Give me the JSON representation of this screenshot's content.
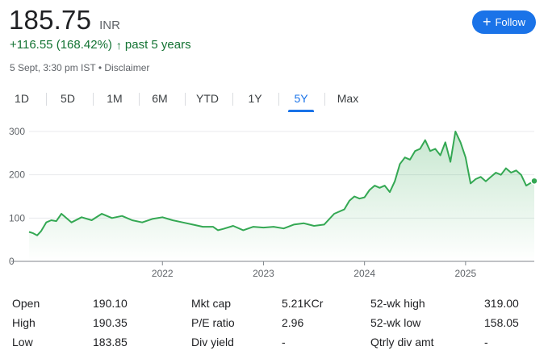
{
  "quote": {
    "price": "185.75",
    "currency": "INR",
    "change": "+116.55 (168.42%)",
    "change_arrow": "↑",
    "change_period": "past 5 years",
    "timestamp": "5 Sept, 3:30 pm IST • Disclaimer",
    "follow_label": "Follow"
  },
  "tabs": [
    "1D",
    "5D",
    "1M",
    "6M",
    "YTD",
    "1Y",
    "5Y",
    "Max"
  ],
  "active_tab": "5Y",
  "colors": {
    "accent": "#1a73e8",
    "positive": "#137333",
    "line": "#34a853"
  },
  "chart_data": {
    "type": "area",
    "ylim": [
      0,
      320
    ],
    "yticks": [
      "300",
      "200",
      "100",
      "0"
    ],
    "xticks": [
      "2022",
      "2023",
      "2024",
      "2025"
    ],
    "series": [
      {
        "x": [
          2020.68,
          2020.72,
          2020.76,
          2020.8,
          2020.85,
          2020.9,
          2020.95,
          2021.0,
          2021.1,
          2021.2,
          2021.3,
          2021.4,
          2021.5,
          2021.6,
          2021.7,
          2021.8,
          2021.9,
          2022.0,
          2022.1,
          2022.2,
          2022.3,
          2022.4,
          2022.5,
          2022.55,
          2022.6,
          2022.7,
          2022.8,
          2022.9,
          2023.0,
          2023.1,
          2023.2,
          2023.3,
          2023.4,
          2023.5,
          2023.6,
          2023.7,
          2023.8,
          2023.85,
          2023.9,
          2023.95,
          2024.0,
          2024.05,
          2024.1,
          2024.15,
          2024.2,
          2024.25,
          2024.3,
          2024.35,
          2024.4,
          2024.45,
          2024.5,
          2024.55,
          2024.6,
          2024.65,
          2024.7,
          2024.75,
          2024.8,
          2024.85,
          2024.9,
          2024.95,
          2025.0,
          2025.05,
          2025.1,
          2025.15,
          2025.2,
          2025.25,
          2025.3,
          2025.35,
          2025.4,
          2025.45,
          2025.5,
          2025.55,
          2025.6,
          2025.65,
          2025.68
        ],
        "values": [
          68,
          65,
          60,
          70,
          90,
          95,
          93,
          110,
          90,
          102,
          95,
          110,
          100,
          105,
          95,
          90,
          98,
          102,
          95,
          90,
          85,
          80,
          80,
          72,
          75,
          82,
          72,
          80,
          78,
          80,
          76,
          85,
          88,
          82,
          85,
          110,
          120,
          140,
          150,
          145,
          148,
          165,
          175,
          170,
          175,
          160,
          185,
          225,
          240,
          235,
          255,
          260,
          280,
          255,
          260,
          245,
          275,
          230,
          300,
          275,
          240,
          180,
          190,
          195,
          185,
          195,
          205,
          200,
          215,
          205,
          210,
          200,
          175,
          182,
          185.75
        ]
      }
    ]
  },
  "stats": {
    "col1": [
      {
        "label": "Open",
        "value": "190.10"
      },
      {
        "label": "High",
        "value": "190.35"
      },
      {
        "label": "Low",
        "value": "183.85"
      }
    ],
    "col2": [
      {
        "label": "Mkt cap",
        "value": "5.21KCr"
      },
      {
        "label": "P/E ratio",
        "value": "2.96"
      },
      {
        "label": "Div yield",
        "value": "-"
      }
    ],
    "col3": [
      {
        "label": "52-wk high",
        "value": "319.00"
      },
      {
        "label": "52-wk low",
        "value": "158.05"
      },
      {
        "label": "Qtrly div amt",
        "value": "-"
      }
    ]
  }
}
